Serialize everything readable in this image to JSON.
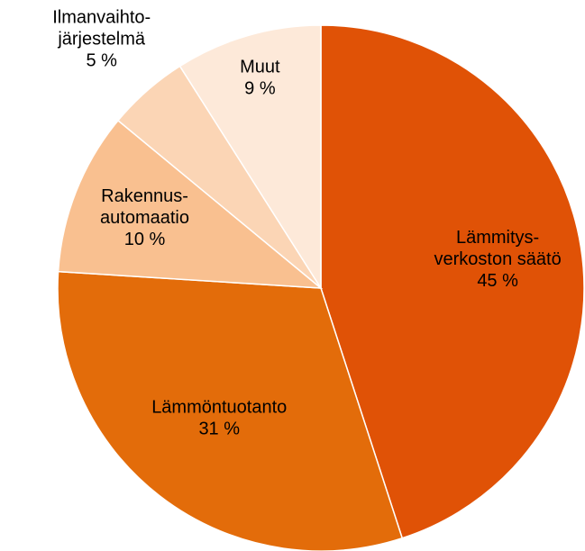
{
  "chart_data": {
    "type": "pie",
    "categories": [
      [
        "Lämmitys-",
        "verkoston säätö"
      ],
      [
        "Lämmöntuotanto"
      ],
      [
        "Rakennus-",
        "automaatio"
      ],
      [
        "Ilmanvaihto-",
        "järjestelmä"
      ],
      [
        "Muut"
      ]
    ],
    "values": [
      45,
      31,
      10,
      5,
      9
    ],
    "value_labels": [
      "45 %",
      "31 %",
      "10 %",
      "5 %",
      "9 %"
    ],
    "colors": [
      "#e05206",
      "#e36c0a",
      "#f9c090",
      "#fbd5b5",
      "#fde9d9"
    ]
  }
}
